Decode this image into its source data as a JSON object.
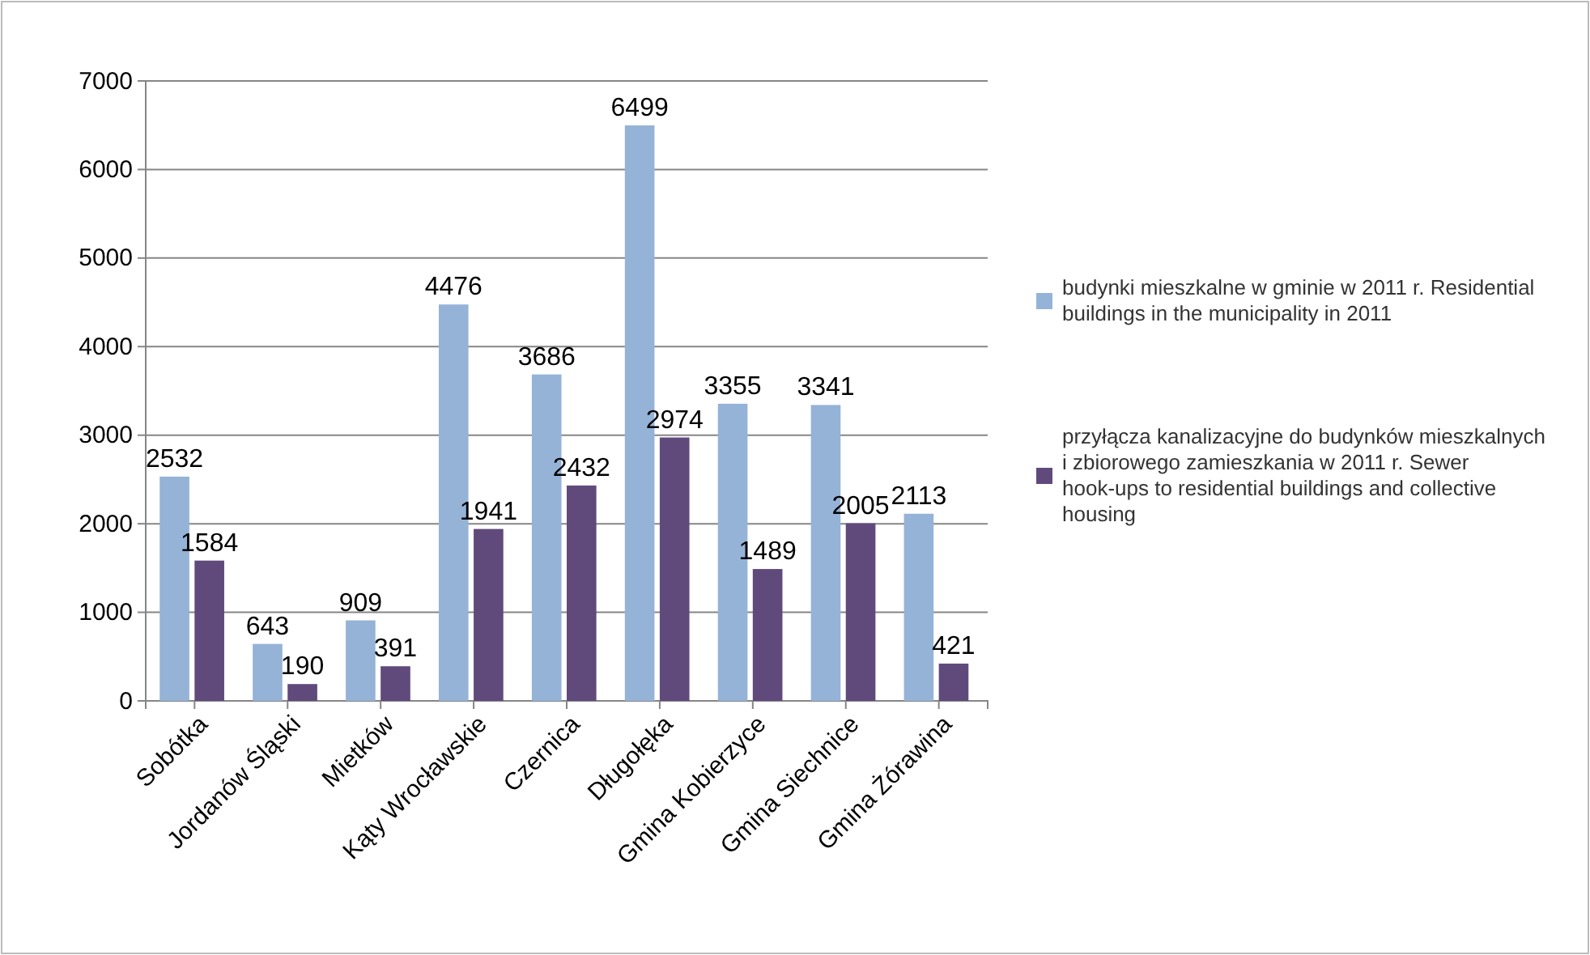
{
  "chart_data": {
    "type": "bar",
    "categories": [
      "Sobótka",
      "Jordanów Śląski",
      "Mietków",
      "Kąty Wrocławskie",
      "Czernica",
      "Długołęka",
      "Gmina Kobierzyce",
      "Gmina Siechnice",
      "Gmina Żórawina"
    ],
    "series": [
      {
        "name": "budynki mieszkalne w gminie w 2011 r. Residential buildings in the municipality in 2011",
        "color": "#95b3d7",
        "values": [
          2532,
          643,
          909,
          4476,
          3686,
          6499,
          3355,
          3341,
          2113
        ]
      },
      {
        "name": "przyłącza kanalizacyjne do budynków mieszkalnych i zbiorowego zamieszkania w 2011 r. Sewer hook-ups to residential buildings and collective housing",
        "color": "#604a7b",
        "values": [
          1584,
          190,
          391,
          1941,
          2432,
          2974,
          1489,
          2005,
          421
        ]
      }
    ],
    "ylim": [
      0,
      7000
    ],
    "yticks": [
      0,
      1000,
      2000,
      3000,
      4000,
      5000,
      6000,
      7000
    ],
    "grid": "y",
    "legend": "right",
    "data_labels": true
  }
}
